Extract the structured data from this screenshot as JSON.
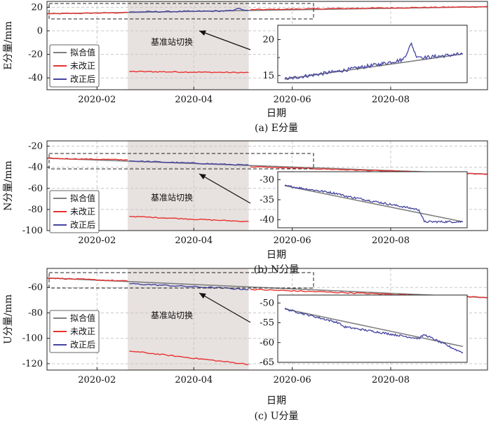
{
  "colors": {
    "fitted": "#808080",
    "uncorrected": "#e8312f",
    "corrected": "#4444a0",
    "shade": "#e7e1df",
    "grid": "#c8c8c8"
  },
  "legend": {
    "fitted": "拟合值",
    "uncorrected": "未改正",
    "corrected": "改正后"
  },
  "annotation": "基准站切换",
  "chart_data": [
    {
      "type": "line",
      "caption": "(a) E分量",
      "xlabel": "日期",
      "ylabel": "E分量/mm",
      "x_ticks": [
        "2020-02",
        "2020-04",
        "2020-06",
        "2020-08"
      ],
      "xlim": [
        "2020-01-01",
        "2020-09-30"
      ],
      "ylim": [
        -50,
        25
      ],
      "y_ticks": [
        20,
        0,
        -20,
        -40
      ],
      "shaded_period": [
        "2020-02-20",
        "2020-05-05"
      ],
      "series": [
        {
          "name": "拟合值",
          "x": [
            "2020-01-01",
            "2020-09-30"
          ],
          "y": [
            14.5,
            20.5
          ]
        },
        {
          "name": "未改正",
          "x": [
            "2020-01-01",
            "2020-02-20",
            "2020-02-21",
            "2020-05-05",
            "2020-05-06",
            "2020-09-30"
          ],
          "y": [
            14.5,
            15.5,
            -34.5,
            -35.5,
            18.0,
            20.5
          ]
        },
        {
          "name": "改正后",
          "x": [
            "2020-02-21",
            "2020-03-30",
            "2020-04-25",
            "2020-04-28",
            "2020-05-01",
            "2020-05-05"
          ],
          "y": [
            16.0,
            16.5,
            17.0,
            19.0,
            18.0,
            17.5
          ]
        }
      ],
      "inset": {
        "xlim": [
          "2020-01-01",
          "2020-06-15"
        ],
        "ylim": [
          14,
          22
        ],
        "y_ticks": [
          20,
          15
        ],
        "y_ticks_minor": [
          17.5
        ],
        "series": [
          {
            "name": "拟合值",
            "x": [
              "2020-01-01",
              "2020-06-15"
            ],
            "y": [
              14.5,
              18.0
            ]
          },
          {
            "name": "改正后",
            "x": [
              "2020-01-01",
              "2020-02-20",
              "2020-03-30",
              "2020-04-20",
              "2020-04-25",
              "2020-04-28",
              "2020-05-02",
              "2020-05-10",
              "2020-06-15"
            ],
            "y": [
              14.5,
              15.6,
              16.6,
              17.2,
              18.5,
              19.5,
              17.8,
              17.5,
              18.0
            ]
          }
        ]
      }
    },
    {
      "type": "line",
      "caption": "(b) N分量",
      "xlabel": "日期",
      "ylabel": "N分量/mm",
      "x_ticks": [
        "2020-02",
        "2020-04",
        "2020-06",
        "2020-08"
      ],
      "xlim": [
        "2020-01-01",
        "2020-09-30"
      ],
      "ylim": [
        -100,
        -15
      ],
      "y_ticks": [
        -20,
        -40,
        -60,
        -80,
        -100
      ],
      "shaded_period": [
        "2020-02-20",
        "2020-05-05"
      ],
      "series": [
        {
          "name": "拟合值",
          "x": [
            "2020-01-01",
            "2020-09-30"
          ],
          "y": [
            -31.5,
            -46.5
          ]
        },
        {
          "name": "未改正",
          "x": [
            "2020-01-01",
            "2020-02-20",
            "2020-02-21",
            "2020-05-05",
            "2020-05-06",
            "2020-09-30"
          ],
          "y": [
            -31.5,
            -33.0,
            -86.5,
            -91.5,
            -39.5,
            -46.5
          ]
        },
        {
          "name": "改正后",
          "x": [
            "2020-02-21",
            "2020-05-05"
          ],
          "y": [
            -34.0,
            -38.0
          ]
        }
      ],
      "inset": {
        "xlim": [
          "2020-01-01",
          "2020-06-15"
        ],
        "ylim": [
          -42,
          -28
        ],
        "y_ticks": [
          -30,
          -35,
          -40
        ],
        "series": [
          {
            "name": "拟合值",
            "x": [
              "2020-01-01",
              "2020-06-15"
            ],
            "y": [
              -31.5,
              -40.5
            ]
          },
          {
            "name": "改正后",
            "x": [
              "2020-01-01",
              "2020-02-20",
              "2020-02-25",
              "2020-05-05",
              "2020-05-10",
              "2020-06-15"
            ],
            "y": [
              -31.5,
              -33.5,
              -34.0,
              -37.5,
              -40.5,
              -40.5
            ]
          }
        ]
      }
    },
    {
      "type": "line",
      "caption": "(c) U分量",
      "xlabel": "日期",
      "ylabel": "U分量/mm",
      "x_ticks": [
        "2020-02",
        "2020-04",
        "2020-06",
        "2020-08"
      ],
      "xlim": [
        "2020-01-01",
        "2020-09-30"
      ],
      "ylim": [
        -125,
        -45
      ],
      "y_ticks": [
        -60,
        -80,
        -100,
        -120
      ],
      "shaded_period": [
        "2020-02-20",
        "2020-05-05"
      ],
      "series": [
        {
          "name": "拟合值",
          "x": [
            "2020-01-01",
            "2020-09-30"
          ],
          "y": [
            -52.5,
            -68.0
          ]
        },
        {
          "name": "未改正",
          "x": [
            "2020-01-01",
            "2020-02-20",
            "2020-02-21",
            "2020-05-05",
            "2020-05-06",
            "2020-09-30"
          ],
          "y": [
            -52.5,
            -55.0,
            -110.0,
            -120.5,
            -61.5,
            -68.0
          ]
        },
        {
          "name": "改正后",
          "x": [
            "2020-02-21",
            "2020-05-05"
          ],
          "y": [
            -57.0,
            -61.5
          ]
        }
      ],
      "inset": {
        "xlim": [
          "2020-01-01",
          "2020-06-15"
        ],
        "ylim": [
          -65,
          -48
        ],
        "y_ticks": [
          -50,
          -55,
          -60,
          -65
        ],
        "series": [
          {
            "name": "拟合值",
            "x": [
              "2020-01-01",
              "2020-06-15"
            ],
            "y": [
              -51.5,
              -61.0
            ]
          },
          {
            "name": "改正后",
            "x": [
              "2020-01-01",
              "2020-02-20",
              "2020-02-25",
              "2020-05-05",
              "2020-05-10",
              "2020-06-10",
              "2020-06-15"
            ],
            "y": [
              -51.5,
              -55.0,
              -56.0,
              -59.0,
              -58.0,
              -62.0,
              -62.5
            ]
          }
        ]
      }
    }
  ]
}
